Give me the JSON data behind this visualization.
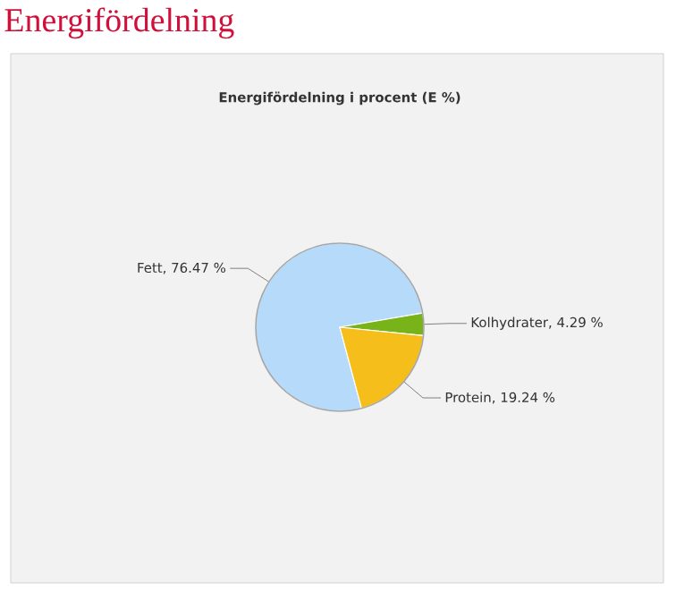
{
  "chart_data": {
    "type": "pie",
    "title": "Energifördelning",
    "subtitle": "Energifördelning i procent (E %)",
    "categories": [
      "Fett, 76.47 %",
      "Kolhydrater, 4.29 %",
      "Protein, 19.24 %"
    ],
    "values": [
      76.47,
      4.29,
      19.24
    ],
    "colors": [
      "#b5dafa",
      "#77b319",
      "#f6be1b"
    ]
  }
}
